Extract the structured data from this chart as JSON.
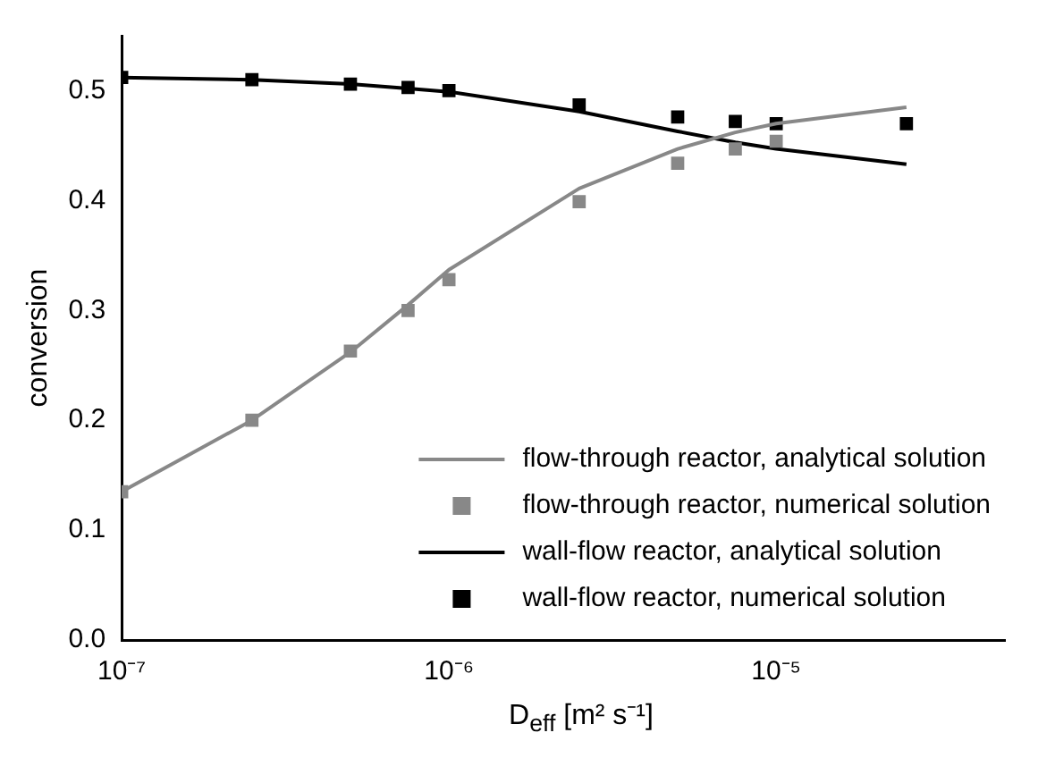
{
  "chart_data": {
    "type": "line",
    "xlabel": "D$_{eff}$ [m² s⁻¹]",
    "ylabel": "conversion",
    "log": "x",
    "x": [
      1e-07,
      2.5e-07,
      5e-07,
      7.5e-07,
      1e-06,
      2.5e-06,
      5e-06,
      7.5e-06,
      1e-05,
      2.5e-05
    ],
    "xlim": [
      1e-07,
      5e-05
    ],
    "xticks": [
      {
        "value": 1e-07,
        "label": "10⁻⁷"
      },
      {
        "value": 1e-06,
        "label": "10⁻⁶"
      },
      {
        "value": 1e-05,
        "label": "10⁻⁵"
      }
    ],
    "ylim": [
      0,
      0.55
    ],
    "yticks": [
      {
        "value": 0,
        "label": "0.0"
      },
      0.1,
      0.2,
      0.3,
      0.4,
      0.5
    ],
    "legend": "bottom right",
    "grid": false,
    "series": [
      {
        "name": "flow-through reactor, analytical solution",
        "marker": "none",
        "color": "#888888",
        "values": [
          0.135,
          0.2,
          0.262,
          0.305,
          0.337,
          0.411,
          0.447,
          0.462,
          0.47,
          0.485
        ]
      },
      {
        "name": "flow-through reactor, numerical solution",
        "type": "scatter",
        "marker": "square",
        "color": "#888888",
        "values": [
          0.135,
          0.2,
          0.263,
          0.3,
          0.328,
          0.399,
          0.434,
          0.447,
          0.454,
          null
        ]
      },
      {
        "name": "wall-flow reactor, analytical solution",
        "marker": "none",
        "color": "#000000",
        "values": [
          0.512,
          0.51,
          0.506,
          0.502,
          0.499,
          0.481,
          0.463,
          0.453,
          0.447,
          0.433
        ]
      },
      {
        "name": "wall-flow reactor, numerical solution",
        "type": "scatter",
        "marker": "square",
        "color": "#000000",
        "values": [
          0.512,
          0.51,
          0.506,
          0.503,
          0.5,
          0.487,
          0.476,
          0.472,
          0.47,
          0.47
        ]
      }
    ]
  }
}
